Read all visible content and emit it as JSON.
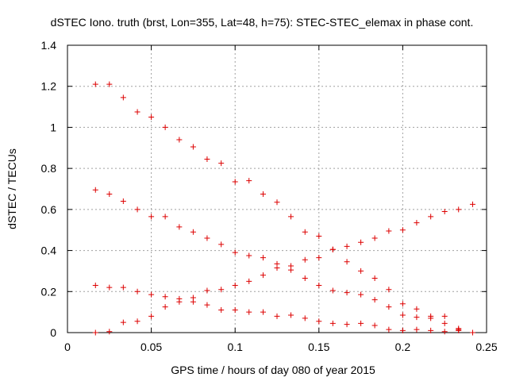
{
  "chart_data": {
    "type": "scatter",
    "title": "dSTEC Iono. truth (brst, Lon=355, Lat=48, h=75): STEC-STEC_elemax in phase cont.",
    "xlabel": "GPS time / hours of day 080 of year 2015",
    "ylabel": "dSTEC  / TECUs",
    "xlim": [
      0,
      0.25
    ],
    "ylim": [
      0,
      1.4
    ],
    "x_ticks": [
      "0",
      "0.05",
      "0.1",
      "0.15",
      "0.2",
      "0.25"
    ],
    "y_ticks": [
      "0",
      "0.2",
      "0.4",
      "0.6",
      "0.8",
      "1",
      "1.2",
      "1.4"
    ],
    "grid": true,
    "marker": "+",
    "marker_color": "#dd0000",
    "series": [
      {
        "points": [
          [
            0.0167,
            1.21
          ],
          [
            0.025,
            1.21
          ],
          [
            0.0333,
            1.145
          ],
          [
            0.0417,
            1.075
          ],
          [
            0.05,
            1.05
          ],
          [
            0.0583,
            1.0
          ],
          [
            0.0667,
            0.94
          ],
          [
            0.075,
            0.905
          ],
          [
            0.0833,
            0.845
          ],
          [
            0.0917,
            0.825
          ],
          [
            0.1,
            0.735
          ],
          [
            0.1083,
            0.74
          ],
          [
            0.1167,
            0.675
          ],
          [
            0.125,
            0.635
          ],
          [
            0.1333,
            0.565
          ],
          [
            0.1417,
            0.49
          ],
          [
            0.15,
            0.47
          ],
          [
            0.1583,
            0.405
          ],
          [
            0.1667,
            0.345
          ],
          [
            0.175,
            0.3
          ],
          [
            0.1833,
            0.265
          ],
          [
            0.1917,
            0.21
          ],
          [
            0.2,
            0.14
          ],
          [
            0.2083,
            0.115
          ],
          [
            0.2167,
            0.08
          ],
          [
            0.225,
            0.08
          ],
          [
            0.2333,
            0.02
          ]
        ]
      },
      {
        "points": [
          [
            0.0167,
            0.695
          ],
          [
            0.025,
            0.675
          ],
          [
            0.0333,
            0.64
          ],
          [
            0.0417,
            0.6
          ],
          [
            0.05,
            0.565
          ],
          [
            0.0583,
            0.565
          ],
          [
            0.0667,
            0.515
          ],
          [
            0.075,
            0.49
          ],
          [
            0.0833,
            0.46
          ],
          [
            0.0917,
            0.43
          ],
          [
            0.1,
            0.39
          ],
          [
            0.1083,
            0.375
          ],
          [
            0.1167,
            0.365
          ],
          [
            0.125,
            0.335
          ],
          [
            0.1333,
            0.325
          ],
          [
            0.1417,
            0.355
          ],
          [
            0.15,
            0.365
          ],
          [
            0.1583,
            0.405
          ],
          [
            0.1667,
            0.42
          ],
          [
            0.175,
            0.44
          ],
          [
            0.1833,
            0.46
          ],
          [
            0.1917,
            0.495
          ],
          [
            0.2,
            0.5
          ],
          [
            0.2083,
            0.535
          ],
          [
            0.2167,
            0.565
          ],
          [
            0.225,
            0.59
          ],
          [
            0.2333,
            0.6
          ],
          [
            0.2417,
            0.625
          ]
        ]
      },
      {
        "points": [
          [
            0.0167,
            0.23
          ],
          [
            0.025,
            0.22
          ],
          [
            0.0333,
            0.22
          ],
          [
            0.0417,
            0.2
          ],
          [
            0.05,
            0.185
          ],
          [
            0.0583,
            0.175
          ],
          [
            0.0667,
            0.165
          ],
          [
            0.075,
            0.17
          ],
          [
            0.0833,
            0.205
          ],
          [
            0.0917,
            0.21
          ],
          [
            0.1,
            0.23
          ],
          [
            0.1083,
            0.25
          ],
          [
            0.1167,
            0.28
          ],
          [
            0.125,
            0.315
          ],
          [
            0.1333,
            0.305
          ],
          [
            0.1417,
            0.265
          ],
          [
            0.15,
            0.23
          ],
          [
            0.1583,
            0.205
          ],
          [
            0.1667,
            0.195
          ],
          [
            0.175,
            0.185
          ],
          [
            0.1833,
            0.16
          ],
          [
            0.1917,
            0.125
          ],
          [
            0.2,
            0.085
          ],
          [
            0.2083,
            0.075
          ],
          [
            0.2167,
            0.07
          ],
          [
            0.225,
            0.045
          ],
          [
            0.2333,
            0.015
          ]
        ]
      },
      {
        "points": [
          [
            0.0167,
            0.0
          ],
          [
            0.025,
            0.005
          ],
          [
            0.0333,
            0.05
          ],
          [
            0.0417,
            0.055
          ],
          [
            0.05,
            0.08
          ],
          [
            0.0583,
            0.125
          ],
          [
            0.0667,
            0.15
          ],
          [
            0.075,
            0.15
          ],
          [
            0.0833,
            0.135
          ],
          [
            0.0917,
            0.11
          ],
          [
            0.1,
            0.11
          ],
          [
            0.1083,
            0.1
          ],
          [
            0.1167,
            0.1
          ],
          [
            0.125,
            0.08
          ],
          [
            0.1333,
            0.085
          ],
          [
            0.1417,
            0.07
          ],
          [
            0.15,
            0.055
          ],
          [
            0.1583,
            0.045
          ],
          [
            0.1667,
            0.04
          ],
          [
            0.175,
            0.045
          ],
          [
            0.1833,
            0.035
          ],
          [
            0.1917,
            0.015
          ],
          [
            0.2,
            0.01
          ],
          [
            0.2083,
            0.015
          ],
          [
            0.2167,
            0.01
          ],
          [
            0.225,
            0.005
          ],
          [
            0.2333,
            0.01
          ],
          [
            0.2417,
            0.0
          ]
        ]
      }
    ]
  }
}
